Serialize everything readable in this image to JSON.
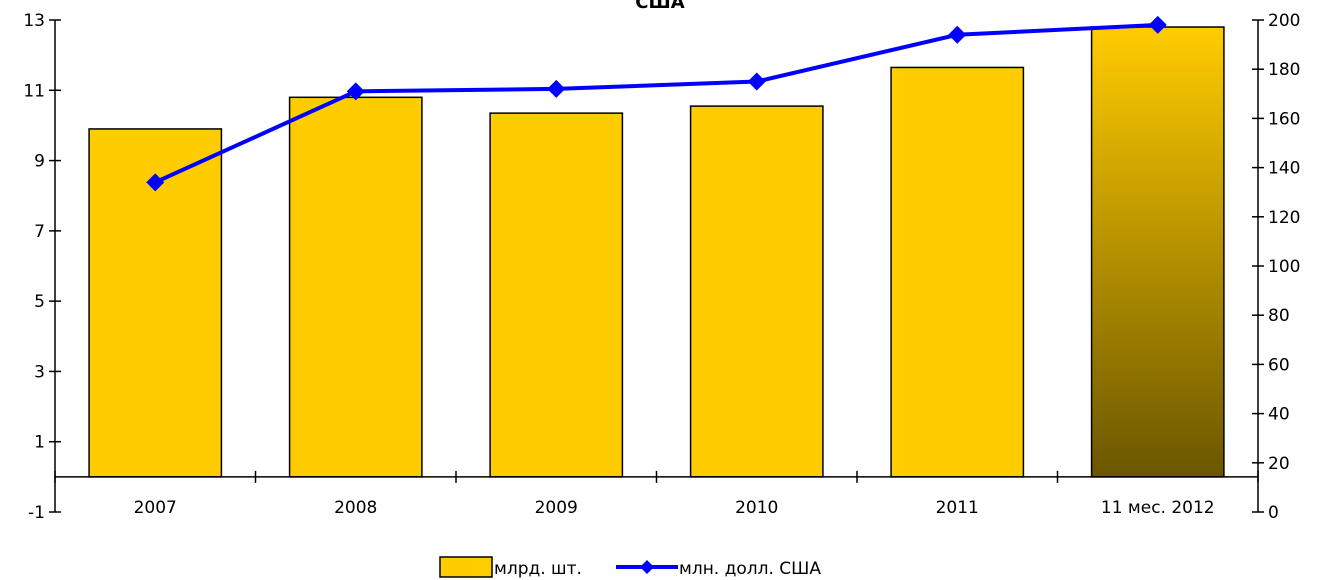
{
  "chart_data": {
    "type": "bar",
    "title": "США",
    "categories": [
      "2007",
      "2008",
      "2009",
      "2010",
      "2011",
      "11 мес. 2012"
    ],
    "bar_series": {
      "name": "млрд. шт.",
      "values": [
        9.9,
        10.8,
        10.35,
        10.55,
        11.65,
        12.8
      ],
      "color": "#FFCC00",
      "last_bar_gradient": [
        "#FFCC00",
        "#6B5600"
      ]
    },
    "line_series": {
      "name": "млн. долл. США",
      "values": [
        134,
        171,
        172,
        175,
        194,
        198
      ],
      "color": "#0000FF"
    },
    "y_left": {
      "ticks": [
        "-1",
        "1",
        "3",
        "5",
        "7",
        "9",
        "11",
        "13"
      ],
      "ylim": [
        -1,
        13
      ]
    },
    "y_right": {
      "ticks": [
        "0",
        "20",
        "40",
        "60",
        "80",
        "100",
        "120",
        "140",
        "160",
        "180",
        "200"
      ],
      "ylim": [
        0,
        200
      ]
    },
    "legend_position": "bottom-center",
    "grid": false
  }
}
